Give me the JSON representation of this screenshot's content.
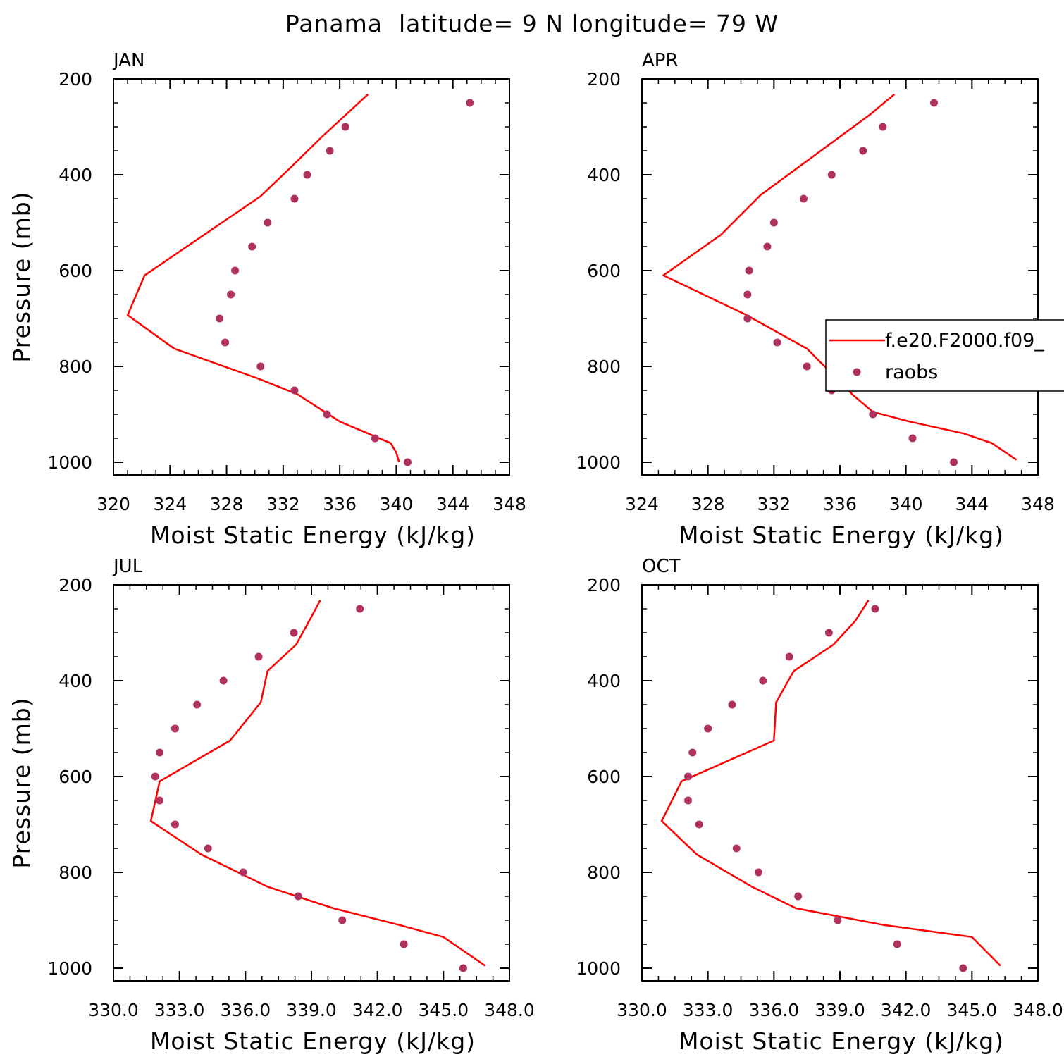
{
  "figure": {
    "title": "Panama  latitude= 9 N longitude= 79 W"
  },
  "legend": {
    "model_label": "f.e20.F2000.f09_",
    "obs_label": "raobs"
  },
  "colors": {
    "model_line": "#ff0000",
    "obs_marker": "#b03060",
    "axis": "#000000"
  },
  "chart_data": [
    {
      "type": "line",
      "panel": "JAN",
      "xlabel": "Moist Static Energy (kJ/kg)",
      "ylabel": "Pressure (mb)",
      "xlim": [
        320,
        348
      ],
      "ylim": [
        1000,
        200
      ],
      "xticks": [
        320,
        324,
        328,
        332,
        336,
        340,
        344,
        348
      ],
      "xtick_labels": [
        "320",
        "324",
        "328",
        "332",
        "336",
        "340",
        "344",
        "348"
      ],
      "yticks": [
        200,
        400,
        600,
        800,
        1000
      ],
      "ytick_labels": [
        "200",
        "400",
        "600",
        "800",
        "1000"
      ],
      "series": [
        {
          "name": "f.e20.F2000.f09_",
          "kind": "line",
          "x": [
            338.0,
            334.7,
            332.7,
            330.4,
            322.2,
            321.0,
            324.3,
            330.2,
            333.0,
            336.0,
            339.6,
            340.0,
            340.2
          ],
          "y": [
            232,
            322,
            380,
            445,
            610,
            693,
            763,
            825,
            858,
            915,
            960,
            980,
            1000
          ]
        },
        {
          "name": "raobs",
          "kind": "scatter",
          "x": [
            345.2,
            336.4,
            335.3,
            333.7,
            332.8,
            330.9,
            329.8,
            328.6,
            328.3,
            327.5,
            327.9,
            330.4,
            332.8,
            335.1,
            338.5,
            340.8
          ],
          "y": [
            250,
            300,
            350,
            400,
            450,
            500,
            550,
            600,
            650,
            700,
            750,
            800,
            850,
            900,
            950,
            1000
          ]
        }
      ]
    },
    {
      "type": "line",
      "panel": "APR",
      "xlabel": "Moist Static Energy (kJ/kg)",
      "ylabel": "",
      "xlim": [
        324,
        348
      ],
      "ylim": [
        1000,
        200
      ],
      "xticks": [
        324,
        328,
        332,
        336,
        340,
        344,
        348
      ],
      "xtick_labels": [
        "324",
        "328",
        "332",
        "336",
        "340",
        "344",
        "348"
      ],
      "yticks": [
        200,
        400,
        600,
        800,
        1000
      ],
      "ytick_labels": [
        "200",
        "400",
        "600",
        "800",
        "1000"
      ],
      "series": [
        {
          "name": "f.e20.F2000.f09_",
          "kind": "line",
          "x": [
            339.3,
            337.8,
            331.2,
            328.8,
            325.3,
            330.3,
            334.0,
            336.8,
            338.0,
            340.2,
            343.5,
            345.2,
            346.7
          ],
          "y": [
            232,
            275,
            442,
            525,
            610,
            692,
            763,
            860,
            895,
            915,
            940,
            960,
            995
          ]
        },
        {
          "name": "raobs",
          "kind": "scatter",
          "x": [
            341.7,
            338.6,
            337.4,
            335.5,
            333.8,
            332.0,
            331.6,
            330.5,
            330.4,
            330.4,
            332.2,
            334.0,
            335.5,
            338.0,
            340.4,
            342.9
          ],
          "y": [
            250,
            300,
            350,
            400,
            450,
            500,
            550,
            600,
            650,
            700,
            750,
            800,
            850,
            900,
            950,
            1000
          ]
        }
      ]
    },
    {
      "type": "line",
      "panel": "JUL",
      "xlabel": "Moist Static Energy (kJ/kg)",
      "ylabel": "Pressure (mb)",
      "xlim": [
        330,
        348
      ],
      "ylim": [
        1000,
        200
      ],
      "xticks": [
        330,
        333,
        336,
        339,
        342,
        345,
        348
      ],
      "xtick_labels": [
        "330.0",
        "333.0",
        "336.0",
        "339.0",
        "342.0",
        "345.0",
        "348.0"
      ],
      "yticks": [
        200,
        400,
        600,
        800,
        1000
      ],
      "ytick_labels": [
        "200",
        "400",
        "600",
        "800",
        "1000"
      ],
      "series": [
        {
          "name": "f.e20.F2000.f09_",
          "kind": "line",
          "x": [
            339.4,
            338.9,
            338.3,
            337.0,
            336.7,
            335.3,
            332.1,
            331.7,
            334.0,
            337.0,
            340.0,
            343.0,
            345.0,
            346.9
          ],
          "y": [
            232,
            275,
            325,
            380,
            445,
            525,
            610,
            693,
            763,
            830,
            875,
            910,
            935,
            995
          ]
        },
        {
          "name": "raobs",
          "kind": "scatter",
          "x": [
            341.2,
            338.2,
            336.6,
            335.0,
            333.8,
            332.8,
            332.1,
            331.9,
            332.1,
            332.8,
            334.3,
            335.9,
            338.4,
            340.4,
            343.2,
            345.9
          ],
          "y": [
            250,
            300,
            350,
            400,
            450,
            500,
            550,
            600,
            650,
            700,
            750,
            800,
            850,
            900,
            950,
            1000
          ]
        }
      ]
    },
    {
      "type": "line",
      "panel": "OCT",
      "xlabel": "Moist Static Energy (kJ/kg)",
      "ylabel": "",
      "xlim": [
        330,
        348
      ],
      "ylim": [
        1000,
        200
      ],
      "xticks": [
        330,
        333,
        336,
        339,
        342,
        345,
        348
      ],
      "xtick_labels": [
        "330.0",
        "333.0",
        "336.0",
        "339.0",
        "342.0",
        "345.0",
        "348.0"
      ],
      "yticks": [
        200,
        400,
        600,
        800,
        1000
      ],
      "ytick_labels": [
        "200",
        "400",
        "600",
        "800",
        "1000"
      ],
      "series": [
        {
          "name": "f.e20.F2000.f09_",
          "kind": "line",
          "x": [
            340.3,
            339.7,
            338.7,
            336.9,
            336.1,
            336.0,
            331.8,
            330.9,
            332.5,
            335.0,
            337.0,
            341.0,
            345.0,
            346.3
          ],
          "y": [
            232,
            275,
            325,
            380,
            445,
            525,
            610,
            693,
            763,
            830,
            875,
            910,
            935,
            995
          ]
        },
        {
          "name": "raobs",
          "kind": "scatter",
          "x": [
            340.6,
            338.5,
            336.7,
            335.5,
            334.1,
            333.0,
            332.3,
            332.1,
            332.1,
            332.6,
            334.3,
            335.3,
            337.1,
            338.9,
            341.6,
            344.6
          ],
          "y": [
            250,
            300,
            350,
            400,
            450,
            500,
            550,
            600,
            650,
            700,
            750,
            800,
            850,
            900,
            950,
            1000
          ]
        }
      ]
    }
  ]
}
